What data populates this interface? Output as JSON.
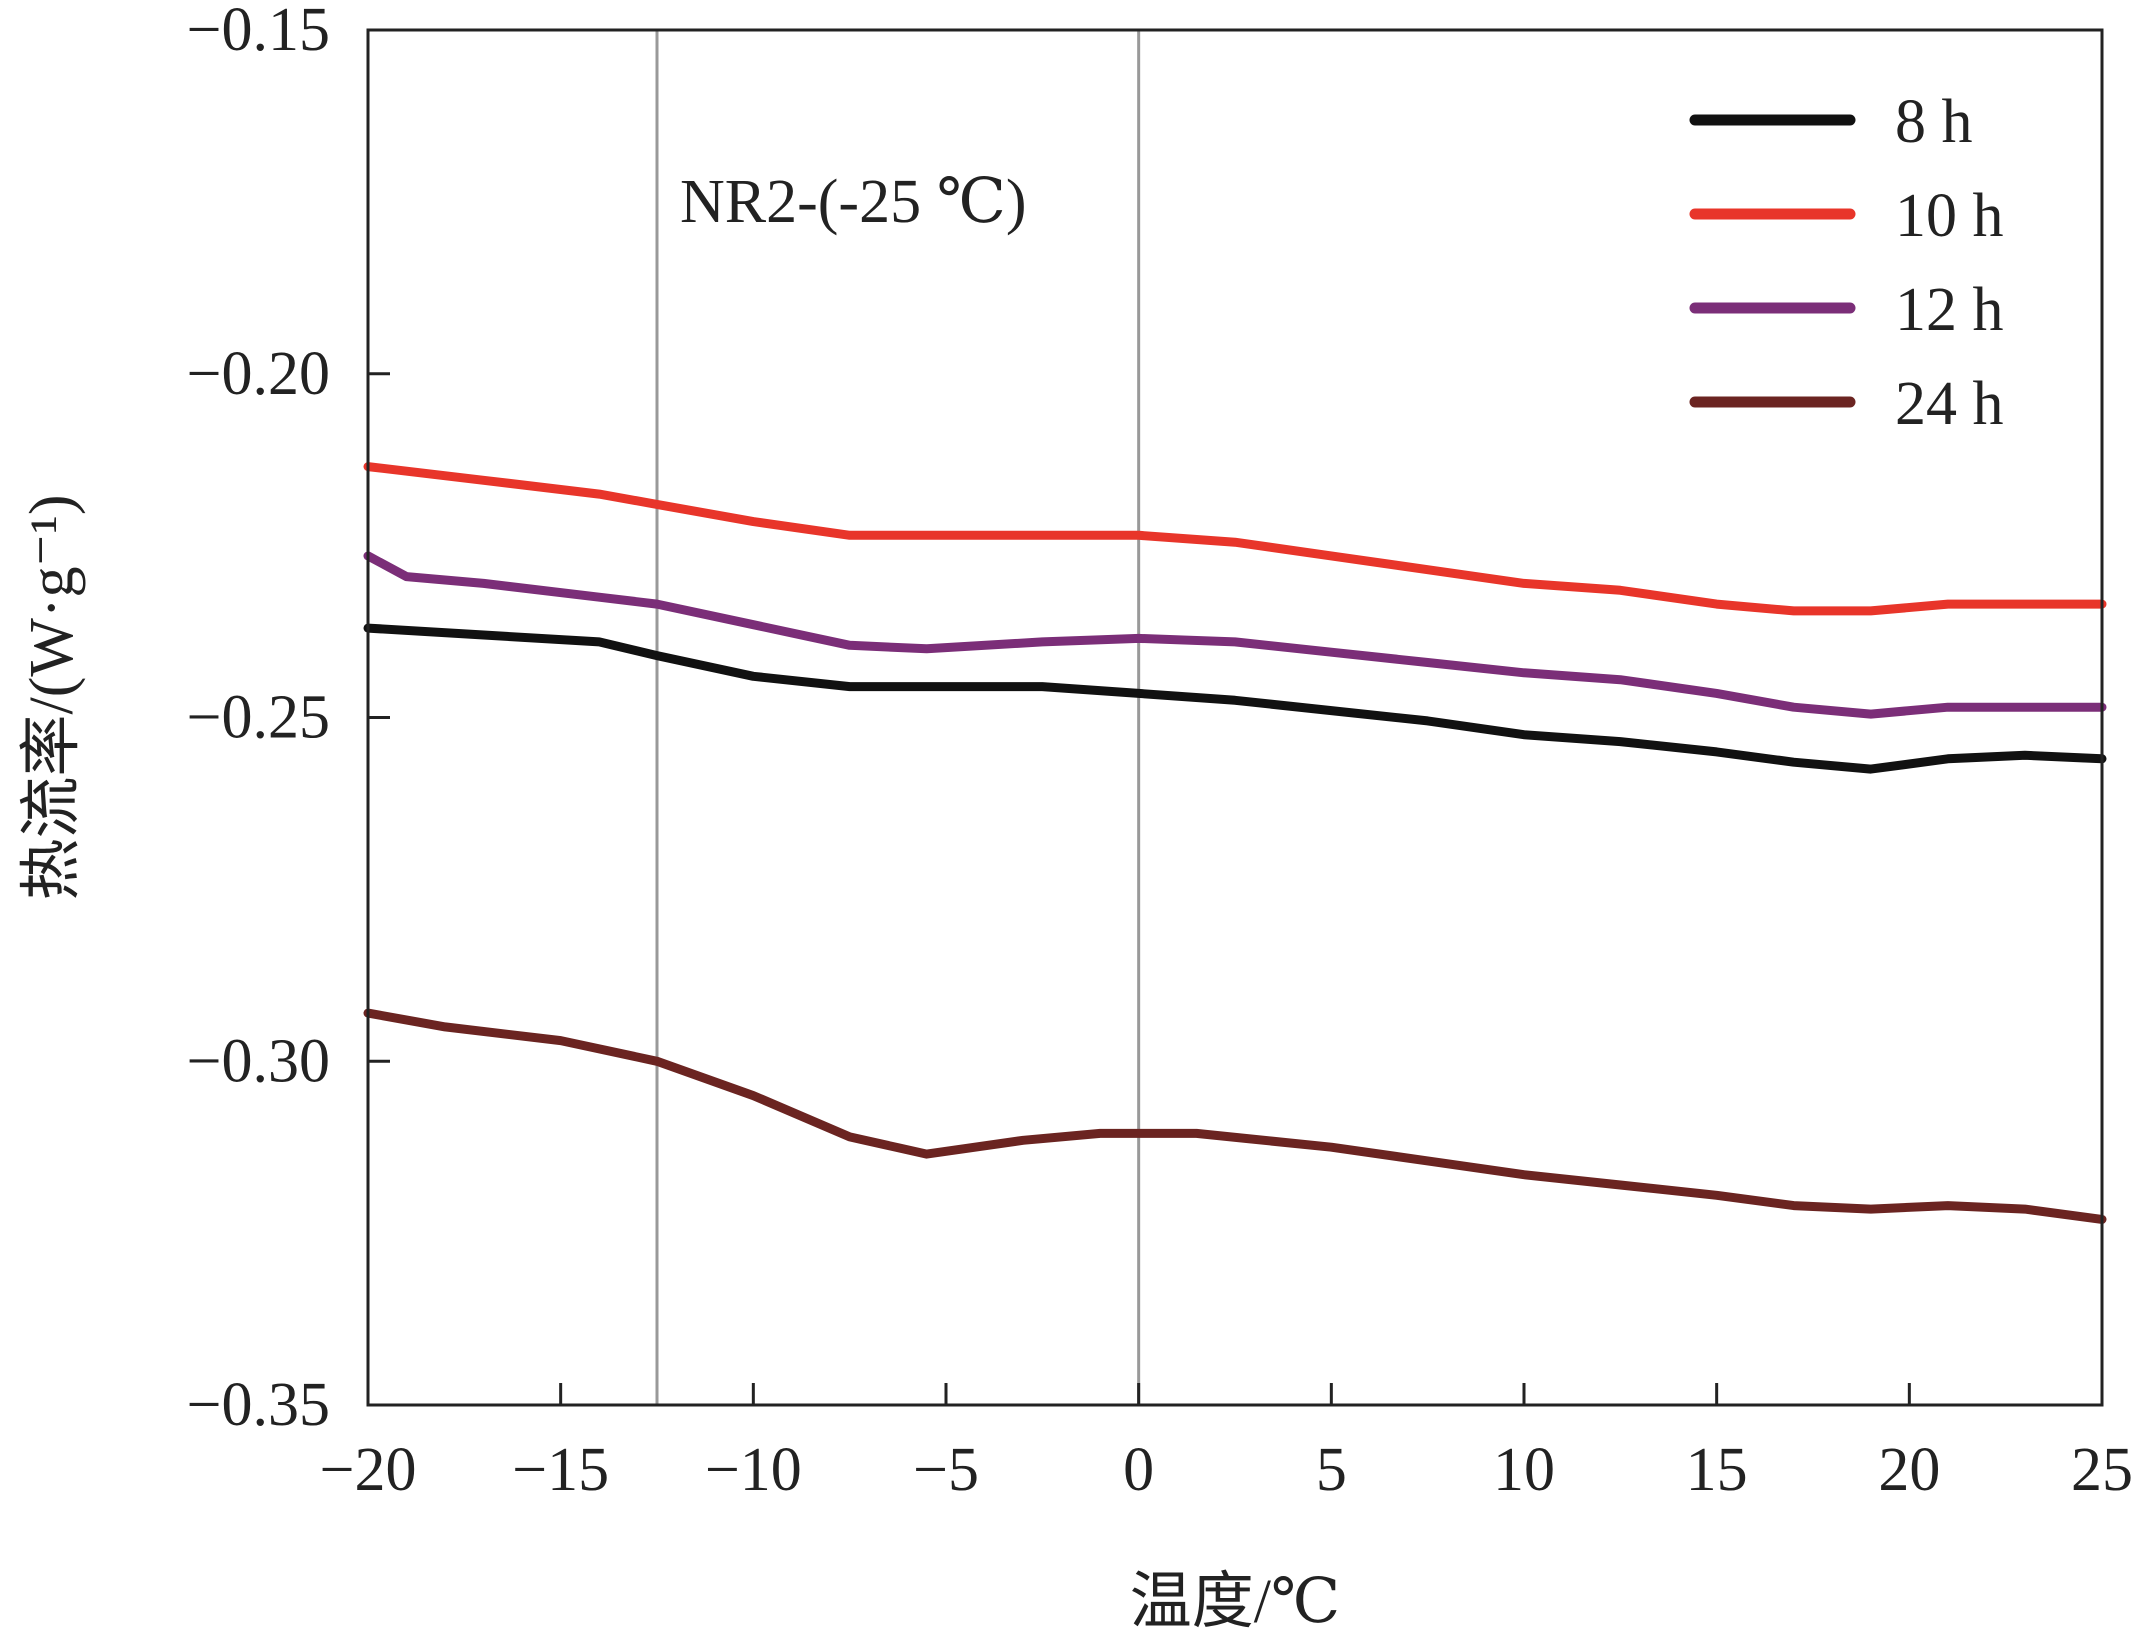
{
  "chart_data": {
    "type": "line",
    "annotation": "NR2-(-25 ℃)",
    "xlabel": "温度/℃",
    "ylabel": "热流率/(W·g⁻¹)",
    "xlim": [
      -20,
      25
    ],
    "ylim": [
      -0.35,
      -0.15
    ],
    "xticks": [
      -20,
      -15,
      -10,
      -5,
      0,
      5,
      10,
      15,
      20,
      25
    ],
    "xtick_labels": [
      "−20",
      "−15",
      "−10",
      "−5",
      "0",
      "5",
      "10",
      "15",
      "20",
      "25"
    ],
    "yticks": [
      -0.35,
      -0.3,
      -0.25,
      -0.2,
      -0.15
    ],
    "ytick_labels": [
      "−0.35",
      "−0.30",
      "−0.25",
      "−0.20",
      "−0.15"
    ],
    "reference_lines_x": [
      -12.5,
      0
    ],
    "legend_position": "top-right",
    "grid": false,
    "series": [
      {
        "name": "8 h",
        "color": "#111111",
        "x": [
          -20,
          -17,
          -14,
          -12.5,
          -10,
          -7.5,
          -5,
          -2.5,
          0,
          2.5,
          5,
          7.5,
          10,
          12.5,
          15,
          17,
          19,
          21,
          23,
          25
        ],
        "y": [
          -0.237,
          -0.238,
          -0.239,
          -0.241,
          -0.244,
          -0.2455,
          -0.2455,
          -0.2455,
          -0.2465,
          -0.2475,
          -0.249,
          -0.2505,
          -0.2525,
          -0.2535,
          -0.255,
          -0.2565,
          -0.2575,
          -0.256,
          -0.2555,
          -0.256
        ]
      },
      {
        "name": "10 h",
        "color": "#e8352a",
        "x": [
          -20,
          -17,
          -14,
          -12.5,
          -10,
          -7.5,
          -5,
          -2.5,
          0,
          2.5,
          5,
          7.5,
          10,
          12.5,
          15,
          17,
          19,
          21,
          23,
          25
        ],
        "y": [
          -0.2135,
          -0.2155,
          -0.2175,
          -0.219,
          -0.2215,
          -0.2235,
          -0.2235,
          -0.2235,
          -0.2235,
          -0.2245,
          -0.2265,
          -0.2285,
          -0.2305,
          -0.2315,
          -0.2335,
          -0.2345,
          -0.2345,
          -0.2335,
          -0.2335,
          -0.2335
        ]
      },
      {
        "name": "12 h",
        "color": "#7b2e78",
        "x": [
          -20,
          -19,
          -17,
          -14,
          -12.5,
          -10,
          -7.5,
          -5.5,
          -2.5,
          0,
          2.5,
          5,
          7.5,
          10,
          12.5,
          15,
          17,
          19,
          21,
          23,
          25
        ],
        "y": [
          -0.2265,
          -0.2295,
          -0.2305,
          -0.2325,
          -0.2335,
          -0.2365,
          -0.2395,
          -0.24,
          -0.239,
          -0.2385,
          -0.239,
          -0.2405,
          -0.242,
          -0.2435,
          -0.2445,
          -0.2465,
          -0.2485,
          -0.2495,
          -0.2485,
          -0.2485,
          -0.2485
        ]
      },
      {
        "name": "24 h",
        "color": "#6b2421",
        "x": [
          -20,
          -18,
          -15,
          -12.5,
          -10,
          -7.5,
          -5.5,
          -3,
          -1,
          0,
          1.5,
          5,
          7.5,
          10,
          12.5,
          15,
          17,
          19,
          21,
          23,
          25
        ],
        "y": [
          -0.293,
          -0.295,
          -0.297,
          -0.3,
          -0.305,
          -0.311,
          -0.3135,
          -0.3115,
          -0.3105,
          -0.3105,
          -0.3105,
          -0.3125,
          -0.3145,
          -0.3165,
          -0.318,
          -0.3195,
          -0.321,
          -0.3215,
          -0.321,
          -0.3215,
          -0.323
        ]
      }
    ]
  }
}
